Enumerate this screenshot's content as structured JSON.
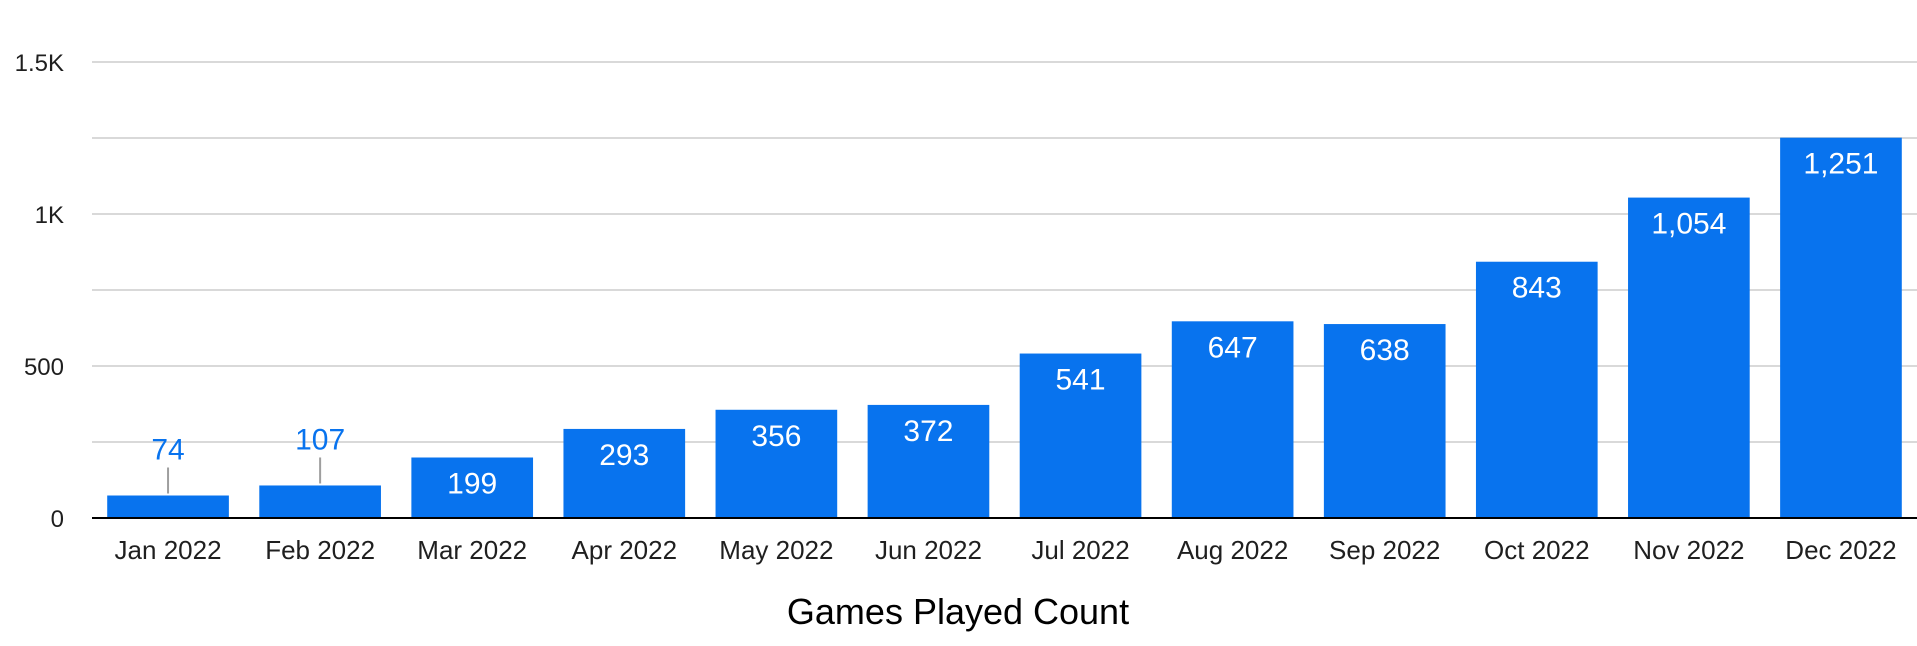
{
  "chart_data": {
    "type": "bar",
    "categories": [
      "Jan 2022",
      "Feb 2022",
      "Mar 2022",
      "Apr 2022",
      "May 2022",
      "Jun 2022",
      "Jul 2022",
      "Aug 2022",
      "Sep 2022",
      "Oct 2022",
      "Nov 2022",
      "Dec 2022"
    ],
    "series": [
      {
        "values": [
          74,
          107,
          199,
          293,
          356,
          372,
          541,
          647,
          638,
          843,
          1054,
          1251
        ],
        "color": "#0873ee"
      }
    ],
    "data_labels": [
      "74",
      "107",
      "199",
      "293",
      "356",
      "372",
      "541",
      "647",
      "638",
      "843",
      "1,054",
      "1,251"
    ],
    "xlabel": "Games Played Count",
    "ylabel": "",
    "ylim": [
      0,
      1500
    ],
    "yticks": [
      0,
      500,
      1000,
      1500
    ],
    "ytick_labels": [
      "0",
      "500",
      "1K",
      "1.5K"
    ],
    "grid": true,
    "legend": "none"
  }
}
